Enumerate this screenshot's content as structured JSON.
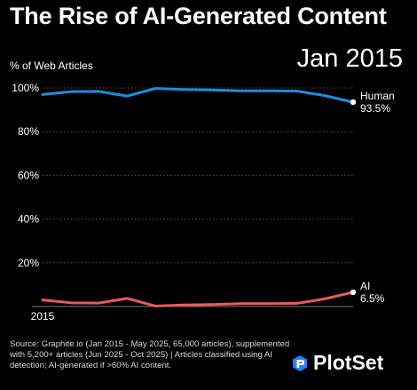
{
  "header": {
    "title": "The Rise of AI-Generated Content",
    "date_label": "Jan 2015"
  },
  "footer": {
    "source": "Source: Graphite.io (Jan 2015 - May 2025, 65,000 articles), supplemented with 5,200+ articles (Jun 2025 - Oct 2025) | Articles classified using AI detection; AI-generated if >60% AI content.",
    "brand": "PlotSet",
    "brand_icon": "plotset-logo-icon"
  },
  "colors": {
    "background": "#000000",
    "human": "#1a8fe0",
    "ai": "#e85b5b",
    "grid": "#555555"
  },
  "chart_data": {
    "type": "line",
    "title": "The Rise of AI-Generated Content",
    "ylabel": "% of Web Articles",
    "xlabel": "",
    "ylim": [
      0,
      100
    ],
    "yticks": [
      "20%",
      "40%",
      "60%",
      "80%",
      "100%"
    ],
    "ytick_values": [
      20,
      40,
      60,
      80,
      100
    ],
    "xtick_labels": [
      "2015"
    ],
    "grid": "horizontal",
    "x": [
      0,
      1,
      2,
      3,
      4,
      5,
      6,
      7,
      8,
      9,
      10,
      11
    ],
    "series": [
      {
        "name": "Human",
        "end_label": "93.5%",
        "color": "#1a8fe0",
        "values": [
          97,
          98.3,
          98.4,
          96.3,
          99.8,
          99.3,
          99.1,
          98.7,
          98.7,
          98.6,
          96.5,
          93.5
        ]
      },
      {
        "name": "AI",
        "end_label": "6.5%",
        "color": "#e85b5b",
        "values": [
          3,
          1.7,
          1.6,
          3.7,
          0.2,
          0.7,
          0.9,
          1.3,
          1.3,
          1.4,
          3.5,
          6.5
        ]
      }
    ]
  }
}
